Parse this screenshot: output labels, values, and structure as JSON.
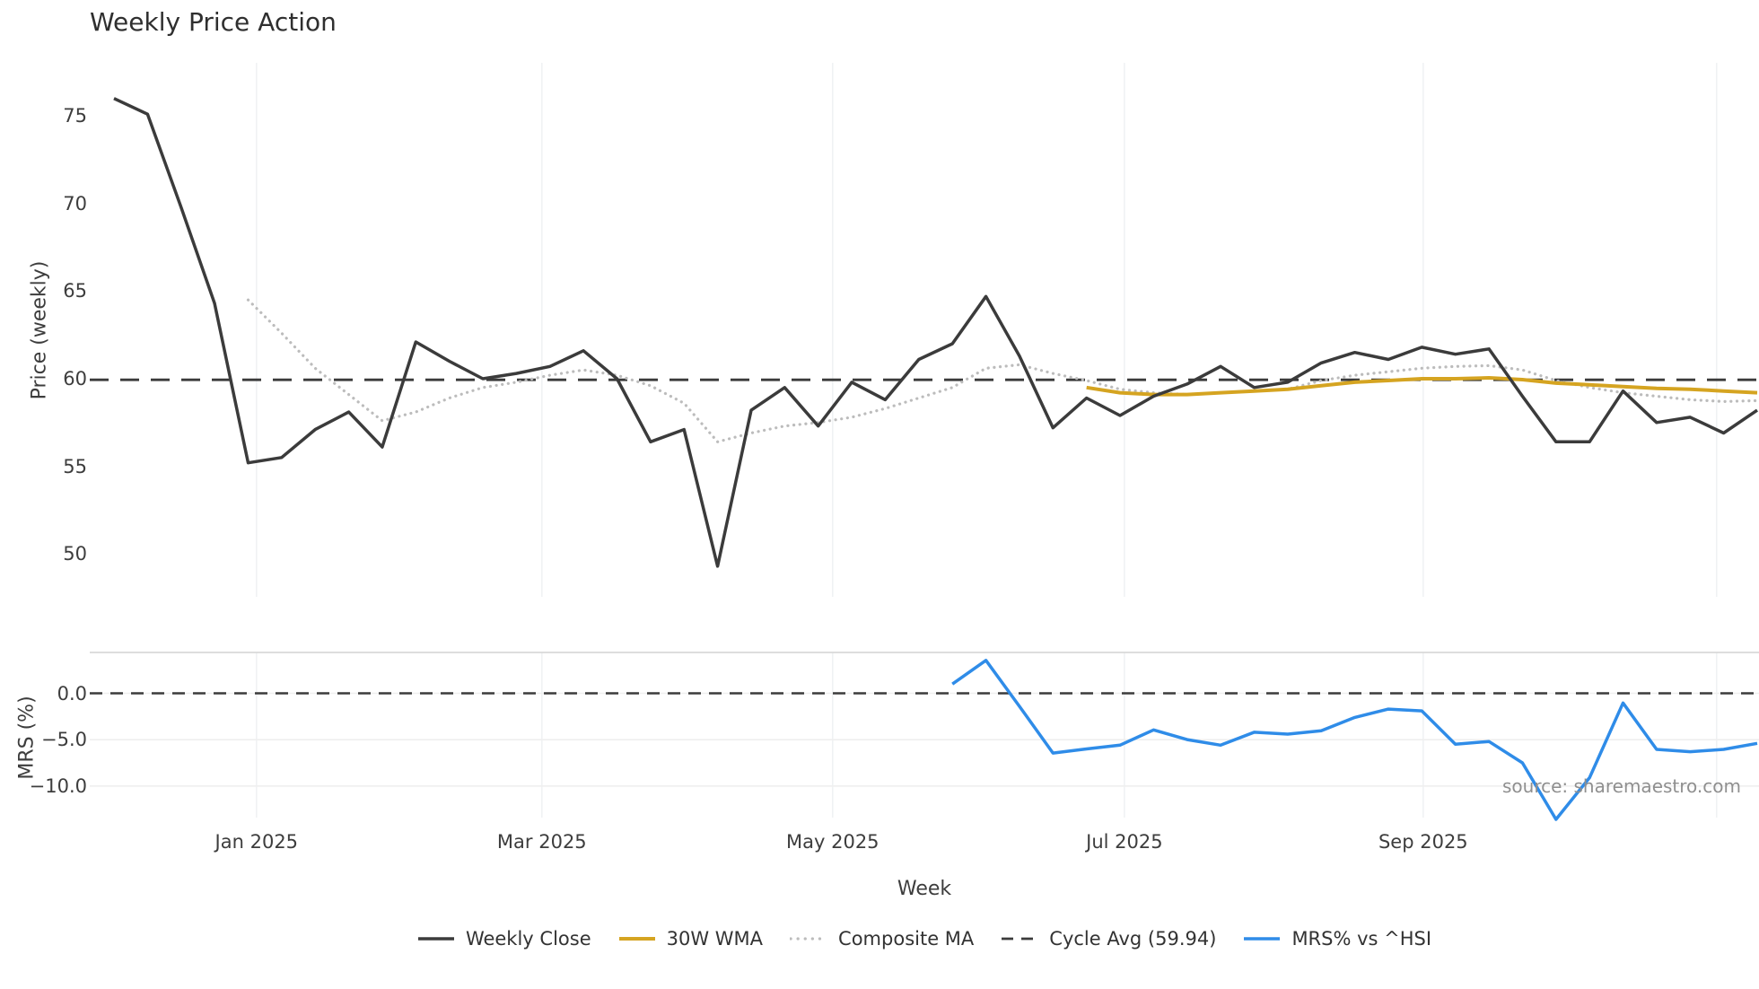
{
  "title": "Weekly Price Action",
  "watermark": "source: sharemaestro.com",
  "chart_data": {
    "type": "line",
    "x": [
      "2024-12-01",
      "2024-12-08",
      "2024-12-15",
      "2024-12-22",
      "2024-12-29",
      "2025-01-05",
      "2025-01-12",
      "2025-01-19",
      "2025-01-26",
      "2025-02-02",
      "2025-02-09",
      "2025-02-16",
      "2025-02-23",
      "2025-03-02",
      "2025-03-09",
      "2025-03-16",
      "2025-03-23",
      "2025-03-30",
      "2025-04-06",
      "2025-04-13",
      "2025-04-20",
      "2025-04-27",
      "2025-05-04",
      "2025-05-11",
      "2025-05-18",
      "2025-05-25",
      "2025-06-01",
      "2025-06-08",
      "2025-06-15",
      "2025-06-22",
      "2025-06-29",
      "2025-07-06",
      "2025-07-13",
      "2025-07-20",
      "2025-07-27",
      "2025-08-03",
      "2025-08-10",
      "2025-08-17",
      "2025-08-24",
      "2025-08-31",
      "2025-09-07",
      "2025-09-14",
      "2025-09-21",
      "2025-09-28",
      "2025-10-05",
      "2025-10-12",
      "2025-10-19",
      "2025-10-26",
      "2025-11-02",
      "2025-11-09"
    ],
    "series": [
      {
        "name": "Weekly Close",
        "panel": "price",
        "color": "#3b3b3b",
        "style": "solid",
        "width": 3.5,
        "values": [
          76.0,
          75.1,
          69.8,
          64.3,
          55.2,
          55.5,
          57.1,
          58.1,
          56.1,
          62.1,
          61.0,
          60.0,
          60.3,
          60.7,
          61.6,
          60.0,
          56.4,
          57.1,
          49.3,
          58.2,
          59.5,
          57.3,
          59.8,
          58.8,
          61.1,
          62.0,
          64.7,
          61.3,
          57.2,
          58.9,
          57.9,
          59.0,
          59.7,
          60.7,
          59.5,
          59.8,
          60.9,
          61.5,
          61.1,
          61.8,
          61.4,
          61.7,
          59.0,
          56.4,
          56.4,
          59.3,
          57.5,
          57.8,
          56.9,
          58.2
        ]
      },
      {
        "name": "30W WMA",
        "panel": "price",
        "color": "#d5a421",
        "style": "solid",
        "width": 4,
        "values": [
          null,
          null,
          null,
          null,
          null,
          null,
          null,
          null,
          null,
          null,
          null,
          null,
          null,
          null,
          null,
          null,
          null,
          null,
          null,
          null,
          null,
          null,
          null,
          null,
          null,
          null,
          null,
          null,
          null,
          59.5,
          59.2,
          59.1,
          59.1,
          59.2,
          59.3,
          59.4,
          59.6,
          59.8,
          59.9,
          60.0,
          60.0,
          60.05,
          59.95,
          59.75,
          59.65,
          59.55,
          59.45,
          59.4,
          59.3,
          59.2
        ]
      },
      {
        "name": "Composite MA",
        "panel": "price",
        "color": "#bcbcbc",
        "style": "dotted",
        "width": 3.2,
        "values": [
          null,
          null,
          null,
          null,
          64.5,
          62.6,
          60.6,
          59.1,
          57.6,
          58.1,
          58.9,
          59.5,
          59.8,
          60.2,
          60.5,
          60.2,
          59.6,
          58.6,
          56.4,
          56.9,
          57.3,
          57.5,
          57.8,
          58.3,
          58.9,
          59.5,
          60.6,
          60.8,
          60.3,
          59.9,
          59.4,
          59.2,
          59.1,
          59.2,
          59.3,
          59.4,
          59.9,
          60.2,
          60.4,
          60.6,
          60.7,
          60.75,
          60.5,
          59.9,
          59.5,
          59.2,
          59.0,
          58.8,
          58.7,
          58.75
        ]
      },
      {
        "name": "Cycle Avg (59.94)",
        "panel": "price",
        "color": "#3b3b3b",
        "style": "dashed",
        "width": 2.8,
        "const": 59.94
      },
      {
        "name": "MRS% vs ^HSI",
        "panel": "mrs",
        "color": "#2f8ce8",
        "style": "solid",
        "width": 3.5,
        "values": [
          null,
          null,
          null,
          null,
          null,
          null,
          null,
          null,
          null,
          null,
          null,
          null,
          null,
          null,
          null,
          null,
          null,
          null,
          null,
          null,
          null,
          null,
          null,
          null,
          null,
          1.0,
          3.55,
          -1.4,
          -6.45,
          -6.0,
          -5.6,
          -3.95,
          -5.0,
          -5.6,
          -4.2,
          -4.4,
          -4.05,
          -2.6,
          -1.7,
          -1.9,
          -5.5,
          -5.2,
          -7.5,
          -13.6,
          -9.1,
          -1.05,
          -6.05,
          -6.3,
          -6.05,
          -5.4
        ]
      }
    ],
    "price_axis": {
      "label": "Price (weekly)",
      "ticks": [
        75,
        70,
        65,
        60,
        55,
        50
      ],
      "range": [
        47.4,
        77.9
      ]
    },
    "mrs_axis": {
      "label": "MRS (%)",
      "ticks": [
        0,
        -5,
        -10
      ],
      "tick_labels": [
        "0.0",
        "−5.0",
        "−10.0"
      ],
      "range": [
        -14.2,
        4.5
      ],
      "zero_line": 0.0
    },
    "x_axis": {
      "label": "Week",
      "ticks": [
        {
          "label": "Jan 2025",
          "i": 4.25
        },
        {
          "label": "Mar 2025",
          "i": 12.76
        },
        {
          "label": "May 2025",
          "i": 21.43
        },
        {
          "label": "Jul 2025",
          "i": 30.13
        },
        {
          "label": "Sep 2025",
          "i": 39.04
        },
        {
          "label": "",
          "i": 47.79
        }
      ]
    },
    "legend_position": "bottom-center",
    "grid": "vertical-months",
    "colors": {
      "grid": "#f0f2f4",
      "mrs_grid": "#efefef",
      "panel_border": "#d8d8d8",
      "tick_text": "#3d3d3d",
      "watermark": "#8f8f8f"
    }
  }
}
